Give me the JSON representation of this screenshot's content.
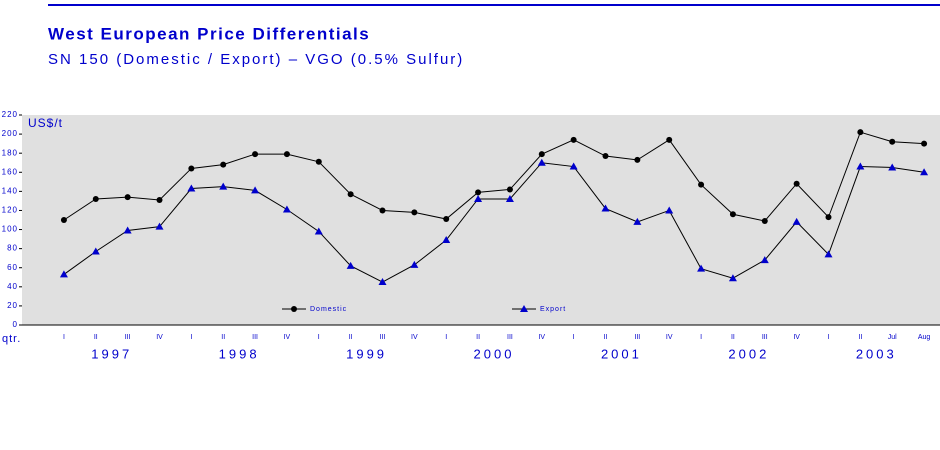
{
  "chart_data": {
    "type": "line",
    "title": "West European Price Differentials",
    "subtitle": "SN 150 (Domestic / Export) – VGO (0.5% Sulfur)",
    "y_label": "US$/t",
    "x_label": "qtr.",
    "categories": [
      "I",
      "II",
      "III",
      "IV",
      "I",
      "II",
      "III",
      "IV",
      "I",
      "II",
      "III",
      "IV",
      "I",
      "II",
      "III",
      "IV",
      "I",
      "II",
      "III",
      "IV",
      "I",
      "II",
      "III",
      "IV",
      "I",
      "II",
      "Jul",
      "Aug"
    ],
    "year_labels": [
      "1997",
      "1998",
      "1999",
      "2000",
      "2001",
      "2002",
      "2003"
    ],
    "series": [
      {
        "name": "Domestic",
        "color": "#000000",
        "marker": "circle",
        "values": [
          110,
          132,
          134,
          131,
          164,
          168,
          179,
          179,
          171,
          137,
          120,
          118,
          111,
          139,
          142,
          179,
          194,
          177,
          173,
          194,
          147,
          116,
          109,
          148,
          113,
          202,
          192,
          190
        ]
      },
      {
        "name": "Export",
        "color": "#0000cc",
        "marker": "triangle",
        "values": [
          53,
          77,
          99,
          103,
          143,
          145,
          141,
          121,
          98,
          62,
          45,
          63,
          89,
          132,
          132,
          170,
          166,
          122,
          108,
          120,
          59,
          49,
          68,
          108,
          74,
          166,
          165,
          160
        ]
      }
    ],
    "ylim": [
      0,
      220
    ],
    "yticks": [
      0,
      20,
      40,
      60,
      80,
      100,
      120,
      140,
      160,
      180,
      200,
      220
    ],
    "grid": false
  }
}
